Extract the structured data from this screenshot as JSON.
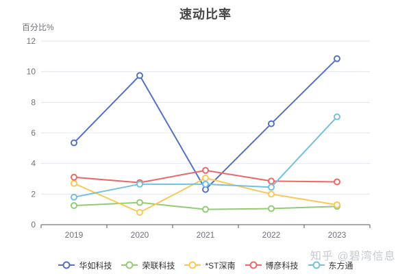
{
  "title": "速动比率",
  "watermark": "知乎 @碧湾信息",
  "colors": {
    "title": "#464646",
    "axis_label": "#6e7079",
    "grid_line": "#e0e6f1",
    "axis_line": "#555555",
    "legend_text": "#333333",
    "watermark": "#c6cad1",
    "background": "#ffffff"
  },
  "chart_data": {
    "type": "line",
    "title": "速动比率",
    "xlabel": "",
    "ylabel": "百分比%",
    "categories": [
      "2019",
      "2020",
      "2021",
      "2022",
      "2023"
    ],
    "series": [
      {
        "name": "华如科技",
        "color": "#5470c6",
        "values": [
          5.35,
          9.75,
          2.3,
          6.6,
          10.85
        ]
      },
      {
        "name": "荣联科技",
        "color": "#91cc75",
        "values": [
          1.25,
          1.45,
          1.0,
          1.05,
          1.2
        ]
      },
      {
        "name": "*ST深南",
        "color": "#fac858",
        "values": [
          2.7,
          0.8,
          3.05,
          2.0,
          1.3
        ]
      },
      {
        "name": "博彦科技",
        "color": "#ee6666",
        "values": [
          3.1,
          2.75,
          3.55,
          2.85,
          2.8
        ]
      },
      {
        "name": "东方通",
        "color": "#73c0de",
        "values": [
          1.8,
          2.65,
          2.65,
          2.45,
          7.05
        ]
      }
    ],
    "ylim": [
      0,
      12
    ],
    "ytick_step": 2,
    "grid": true,
    "legend_position": "bottom",
    "marker": "hollow-circle"
  }
}
